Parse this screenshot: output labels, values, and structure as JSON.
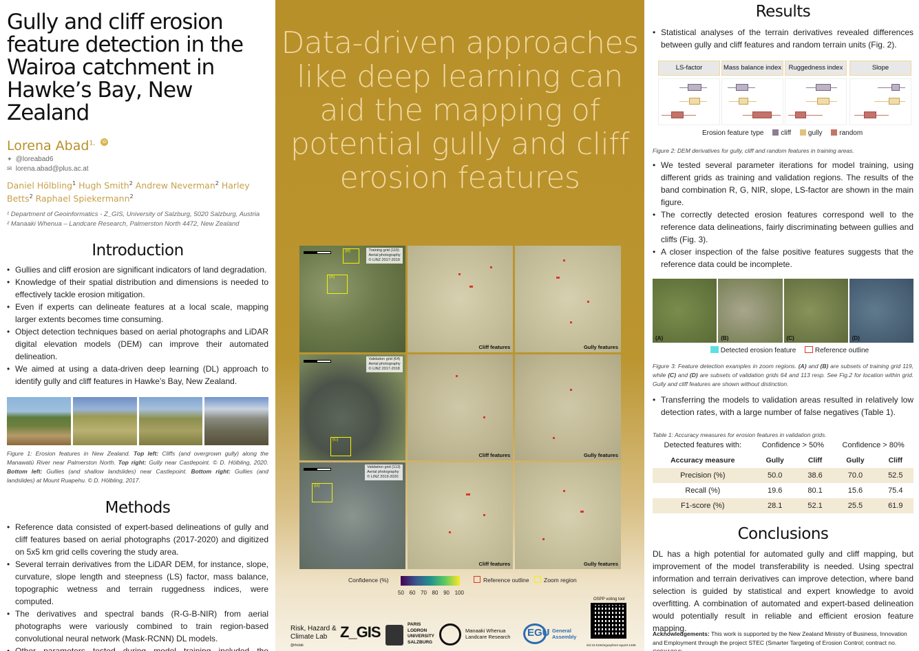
{
  "title": "Gully and cliff erosion feature detection in the Wairoa catchment in Hawke’s Bay, New Zealand",
  "authors": {
    "main": "Lorena Abad",
    "main_sup": "1,",
    "orcid": "iD",
    "twitter": "@loreabad6",
    "email": "lorena.abad@plus.ac.at",
    "coauthors": [
      {
        "name": "Daniel Hölbling",
        "sup": "1"
      },
      {
        "name": "Hugh Smith",
        "sup": "2"
      },
      {
        "name": "Andrew Neverman",
        "sup": "2"
      },
      {
        "name": "Harley Betts",
        "sup": "2"
      },
      {
        "name": "Raphael Spiekermann",
        "sup": "2"
      }
    ],
    "affiliations": [
      "¹ Department of Geoinformatics - Z_GIS, University of Salzburg, 5020 Salzburg, Austria",
      "² Manaaki Whenua – Landcare Research, Palmerston North 4472, New Zealand"
    ]
  },
  "introduction": {
    "heading": "Introduction",
    "bullets": [
      "Gullies and cliff erosion are significant indicators of land degradation.",
      "Knowledge of their spatial distribution and dimensions is needed to effectively tackle erosion mitigation.",
      "Even if experts can delineate features at a local scale, mapping larger extents becomes time consuming.",
      "Object detection techniques based on aerial photographs and LiDAR digital elevation models (DEM) can improve their automated delineation.",
      "We aimed at using a data-driven deep learning (DL) approach to identify gully and cliff features in Hawke’s Bay, New Zealand."
    ],
    "figure1_caption_parts": [
      {
        "t": "Figure 1: Erosion features in New Zealand. ",
        "b": false
      },
      {
        "t": "Top left:",
        "b": true
      },
      {
        "t": " Cliffs (and overgrown gully) along the Manawatū River near Palmerston North. ",
        "b": false
      },
      {
        "t": "Top right:",
        "b": true
      },
      {
        "t": " Gully near Castlepoint. © D. Hölbling, 2020. ",
        "b": false
      },
      {
        "t": "Bottom left:",
        "b": true
      },
      {
        "t": " Gullies (and shallow landslides) near Castlepoint. ",
        "b": false
      },
      {
        "t": "Bottom right:",
        "b": true
      },
      {
        "t": " Gullies (and landslides) at Mount Ruapehu. © D. Hölbling, 2017.",
        "b": false
      }
    ]
  },
  "methods": {
    "heading": "Methods",
    "bullets": [
      "Reference data consisted of expert-based delineations of gully and cliff features based on aerial photographs (2017-2020) and digitized on 5x5 km grid cells covering the study area.",
      "Several terrain derivatives from the LiDAR DEM, for instance, slope, curvature, slope length and steepness (LS) factor, mass balance, topographic wetness and terrain ruggedness indices, were computed.",
      "The derivatives and spectral bands (R-G-B-NIR) from aerial photographs were variously combined to train region-based convolutional neural network (Mask-RCNN) DL models.",
      "Other parameters tested during model training included the train/validation split, backbone and use of PointRend enhancement."
    ]
  },
  "center": {
    "takeaway": "Data-driven approaches like deep learning can aid the mapping of potential gully and cliff erosion features",
    "rows": [
      {
        "info": [
          "Training grid (119)",
          "Aerial photography",
          "© LINZ 2017-2019"
        ],
        "zooms": [
          "(A)",
          "(B)"
        ]
      },
      {
        "info": [
          "Validation grid (64)",
          "Aerial photography",
          "© LINZ 2017-2018"
        ],
        "zooms": [
          "(C)"
        ]
      },
      {
        "info": [
          "Validation grid (113)",
          "Aerial photography",
          "© LINZ 2019-2020"
        ],
        "zooms": [
          "(D)"
        ]
      }
    ],
    "col_labels": [
      "Cliff features",
      "Gully features"
    ],
    "legend": {
      "confidence_label": "Confidence (%)",
      "ticks": [
        "50",
        "60",
        "70",
        "80",
        "90",
        "100"
      ],
      "reference_outline": "Reference outline",
      "zoom_region": "Zoom region",
      "colors": {
        "reference": "#d63a2c",
        "zoom": "#f2f20a"
      }
    },
    "logos": {
      "rhcl": "Risk, Hazard & Climate Lab",
      "rhcl_handle": "@rhclab",
      "zgis": "Z_GIS",
      "plus_lines": [
        "PARIS",
        "LODRON",
        "UNIVERSITY",
        "SALZBURG"
      ],
      "mw_lines": [
        "Manaaki Whenua",
        "Landcare Research"
      ],
      "egu": "EGU",
      "egu_sub": [
        "General",
        "Assembly"
      ],
      "ospp": "OSPP voting tool",
      "doi": "doi:10.5194/egusphere-egu23-1468"
    }
  },
  "results": {
    "heading": "Results",
    "bullets1": [
      "Statistical analyses of the terrain derivatives revealed differences between gully and cliff features and random terrain units (Fig. 2)."
    ],
    "fig2": {
      "facets": [
        "LS-factor",
        "Mass balance index",
        "Ruggedness index",
        "Slope"
      ],
      "legend_title": "Erosion feature type",
      "legend_items": [
        {
          "name": "cliff",
          "color": "#8a7f95"
        },
        {
          "name": "gully",
          "color": "#e0c27e"
        },
        {
          "name": "random",
          "color": "#c4736a"
        }
      ],
      "caption": "Figure 2: DEM derivatives for gully, cliff and random features in training areas."
    },
    "bullets2": [
      "We tested several parameter iterations for model training, using different grids as training and validation regions. The results of the band combination R, G, NIR, slope, LS-factor are shown in the main figure.",
      "The correctly detected erosion features correspond well to the reference data delineations, fairly discriminating between gullies and cliffs (Fig. 3).",
      "A closer inspection of the false positive features suggests that the reference data could be incomplete."
    ],
    "fig3": {
      "tiles": [
        "(A)",
        "(B)",
        "(C)",
        "(D)"
      ],
      "legend": [
        "Detected erosion feature",
        "Reference outline"
      ],
      "colors": {
        "detected": "#5fe0e0",
        "reference": "#d63a2c"
      },
      "caption_parts": [
        {
          "t": "Figure 3: Feature detection examples in zoom regions. ",
          "b": false
        },
        {
          "t": "(A)",
          "b": true
        },
        {
          "t": " and ",
          "b": false
        },
        {
          "t": "(B)",
          "b": true
        },
        {
          "t": " are subsets of training grid 119, while ",
          "b": false
        },
        {
          "t": "(C)",
          "b": true
        },
        {
          "t": " and ",
          "b": false
        },
        {
          "t": "(D)",
          "b": true
        },
        {
          "t": " are subsets of validation grids 64 and 113 resp. See Fig.2 for location within grid. Gully and cliff features are shown without distinction.",
          "b": false
        }
      ]
    },
    "bullets3": [
      "Transferring the models to validation areas resulted in relatively low detection rates, with a large number of false negatives (Table 1)."
    ],
    "table": {
      "caption": "Table 1: Accuracy measures for erosion features in validation grids.",
      "group_header": [
        "Detected features with:",
        "Confidence > 50%",
        "Confidence > 80%"
      ],
      "col_header": [
        "Accuracy measure",
        "Gully",
        "Cliff",
        "Gully",
        "Cliff"
      ],
      "rows": [
        [
          "Precision (%)",
          "50.0",
          "38.6",
          "70.0",
          "52.5"
        ],
        [
          "Recall (%)",
          "19.6",
          "80.1",
          "15.6",
          "75.4"
        ],
        [
          "F1-score (%)",
          "28.1",
          "52.1",
          "25.5",
          "61.9"
        ]
      ]
    }
  },
  "conclusions": {
    "heading": "Conclusions",
    "text": "DL has a high potential for automated gully and cliff mapping, but improvement of the model transferability is needed. Using spectral information and terrain derivatives can improve detection, where band selection is guided by statistical and expert knowledge to avoid overfitting. A combination of automated and expert-based delineation would potentially result in reliable and efficient erosion feature mapping.",
    "ack_label": "Acknowledgements:",
    "ack_text": " This work is supported by the New Zealand Ministry of Business, Innovation and Employment through the project STEC (Smarter Targeting of Erosion Control; contract no. C09X1804)."
  }
}
